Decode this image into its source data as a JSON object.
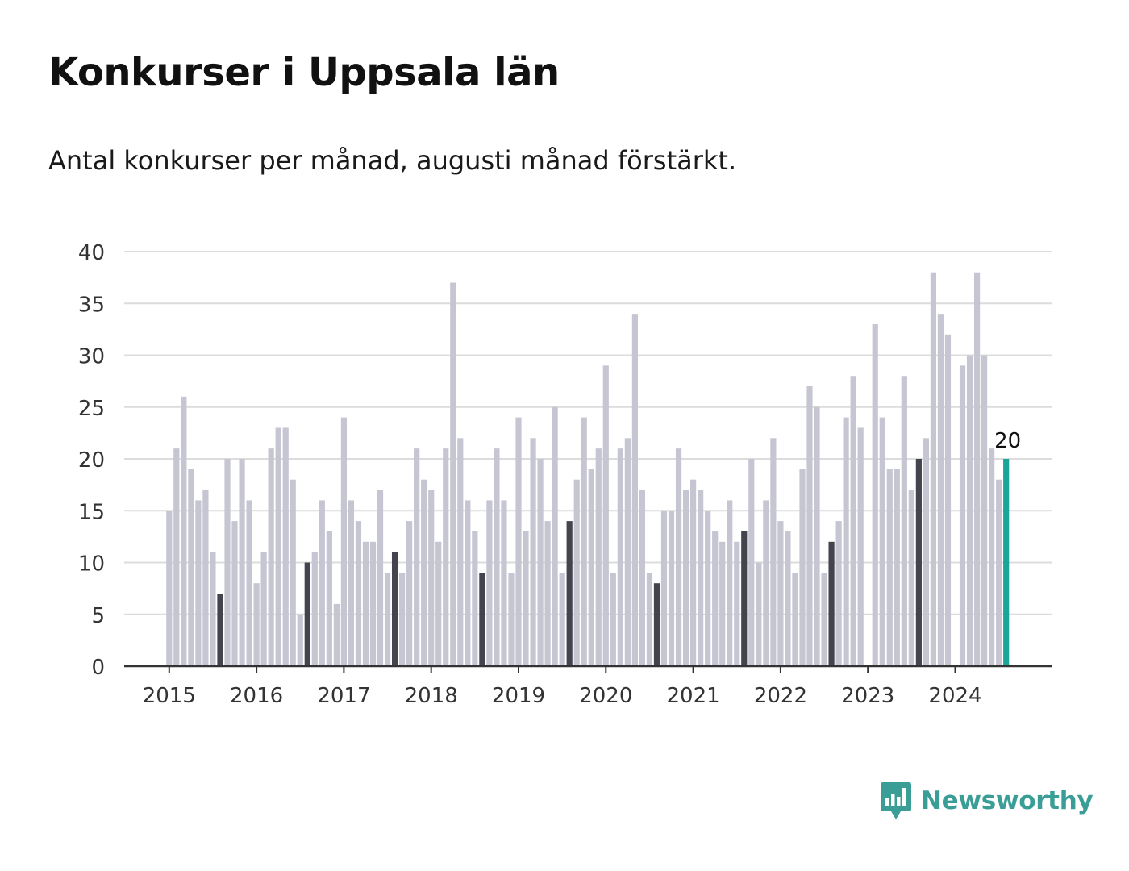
{
  "title": "Konkurser i Uppsala län",
  "subtitle": "Antal konkurser per månad, augusti månad förstärkt.",
  "brand": {
    "name": "Newsworthy",
    "color": "#3a9e97"
  },
  "colors": {
    "bar": "#c6c6d3",
    "highlight": "#44444f",
    "latest": "#1aa59b",
    "grid": "#dcdcdc",
    "axis": "#333333"
  },
  "chart_data": {
    "type": "bar",
    "title": "Konkurser i Uppsala län",
    "subtitle": "Antal konkurser per månad, augusti månad förstärkt.",
    "xlabel": "",
    "ylabel": "",
    "ylim": [
      0,
      40
    ],
    "yticks": [
      0,
      5,
      10,
      15,
      20,
      25,
      30,
      35,
      40
    ],
    "xticks": [
      "2015",
      "2016",
      "2017",
      "2018",
      "2019",
      "2020",
      "2021",
      "2022",
      "2023",
      "2024"
    ],
    "grid": true,
    "start": "2015-01",
    "highlight_month": "augusti",
    "latest_label": "20",
    "years": [
      {
        "year": "2015",
        "values": [
          15,
          21,
          26,
          19,
          16,
          17,
          11,
          7,
          20,
          14,
          20,
          16
        ]
      },
      {
        "year": "2016",
        "values": [
          8,
          11,
          21,
          23,
          23,
          18,
          5,
          10,
          11,
          16,
          13,
          6
        ]
      },
      {
        "year": "2017",
        "values": [
          24,
          16,
          14,
          12,
          12,
          17,
          9,
          11,
          9,
          14,
          21,
          18
        ]
      },
      {
        "year": "2018",
        "values": [
          17,
          12,
          21,
          37,
          22,
          16,
          13,
          9,
          16,
          21,
          16,
          9
        ]
      },
      {
        "year": "2019",
        "values": [
          24,
          13,
          22,
          20,
          14,
          25,
          9,
          14,
          18,
          24,
          19,
          21
        ]
      },
      {
        "year": "2020",
        "values": [
          29,
          9,
          21,
          22,
          34,
          17,
          9,
          8,
          15,
          15,
          21,
          17
        ]
      },
      {
        "year": "2021",
        "values": [
          18,
          17,
          15,
          13,
          12,
          16,
          12,
          13,
          20,
          10,
          16,
          22
        ]
      },
      {
        "year": "2022",
        "values": [
          14,
          13,
          9,
          19,
          27,
          25,
          9,
          12,
          14,
          24,
          28,
          23
        ]
      },
      {
        "year": "2023",
        "values": [
          0,
          33,
          24,
          19,
          19,
          28,
          17,
          20,
          22,
          38,
          34,
          32
        ]
      },
      {
        "year": "2024",
        "values": [
          0,
          29,
          30,
          38,
          30,
          21,
          18,
          20
        ]
      }
    ]
  }
}
